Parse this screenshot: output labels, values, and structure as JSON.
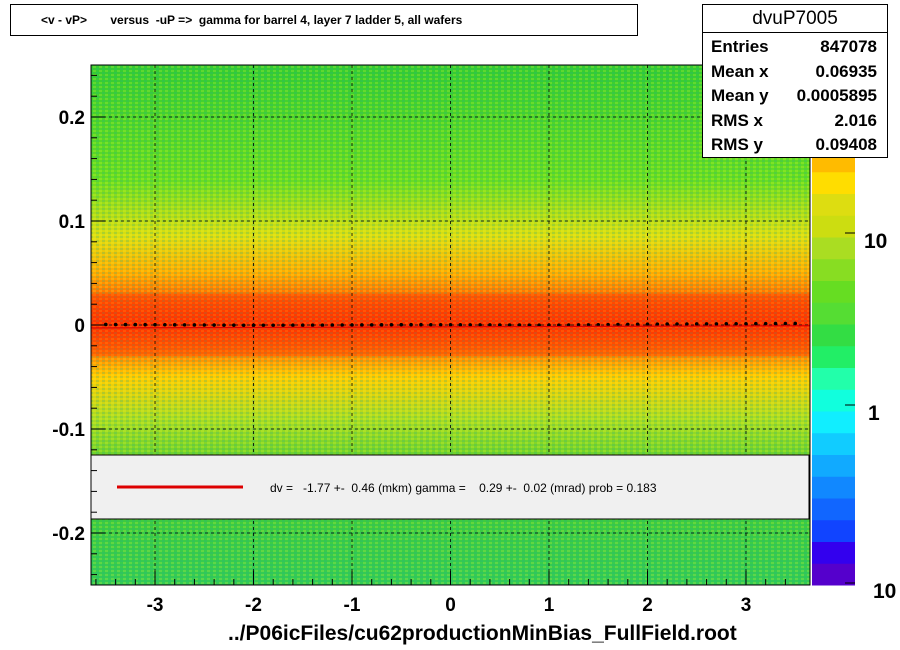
{
  "title": "<v - vP>       versus  -uP =>  gamma for barrel 4, layer 7 ladder 5, all wafers",
  "stats": {
    "name": "dvuP7005",
    "rows": [
      {
        "label": "Entries",
        "value": "847078"
      },
      {
        "label": "Mean x",
        "value": "0.06935"
      },
      {
        "label": "Mean y",
        "value": "0.0005895"
      },
      {
        "label": "RMS x",
        "value": "2.016"
      },
      {
        "label": "RMS y",
        "value": "0.09408"
      }
    ]
  },
  "colors": {
    "fit_line": "#dd0000",
    "profile_points": "#000000",
    "legend_bg": "#f0f0f0"
  },
  "chart_data": {
    "type": "heatmap",
    "xlabel": "../P06icFiles/cu62productionMinBias_FullField.root",
    "ylabel": "",
    "xlim": [
      -3.65,
      3.65
    ],
    "ylim": [
      -0.25,
      0.25
    ],
    "x_ticks": [
      -3,
      -2,
      -1,
      0,
      1,
      2,
      3
    ],
    "y_ticks": [
      -0.2,
      -0.1,
      0,
      0.1,
      0.2
    ],
    "y_tick_labels": [
      "-0.2",
      "-0.1",
      "0",
      "0.1",
      "0.2"
    ],
    "grid": true,
    "colorbar": {
      "scale": "log",
      "tick_labels": [
        "1",
        "10",
        "10"
      ]
    },
    "density_peak_y": 0.0,
    "density_core_halfwidth_y": 0.03,
    "fit": {
      "legend_text": "dv =   -1.77 +-  0.46 (mkm) gamma =    0.29 +-  0.02 (mrad) prob = 0.183",
      "slope": 0.00029,
      "intercept": -0.00177
    },
    "profile": {
      "x": [
        -3.5,
        -3.0,
        -2.5,
        -2.0,
        -1.5,
        -1.0,
        -0.5,
        0.0,
        0.5,
        1.0,
        1.5,
        2.0,
        2.5,
        3.0,
        3.5
      ],
      "y": [
        0.0005,
        0.0003,
        0.0,
        -0.0003,
        -0.0002,
        0.0,
        0.0003,
        0.0002,
        0.0,
        -0.0002,
        0.0002,
        0.0008,
        0.001,
        0.0012,
        0.0015
      ]
    }
  }
}
